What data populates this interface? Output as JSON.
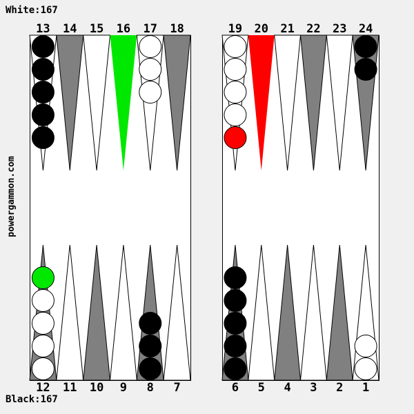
{
  "scores": {
    "white_label": "White:167",
    "black_label": "Black:167",
    "white_pips": 167,
    "black_pips": 167
  },
  "watermark": {
    "text": "powergammon.com"
  },
  "colors": {
    "background": "#f0f0f0",
    "board_fill": "#ffffff",
    "border": "#000000",
    "point_gray": "#808080",
    "point_white": "#ffffff",
    "highlight_green": "#00e800",
    "highlight_red": "#ff0000",
    "checker_black": "#000000",
    "checker_white": "#ffffff",
    "checker_green": "#00e800",
    "checker_red": "#ff0000"
  },
  "board": {
    "points": [
      {
        "number": 13,
        "quadrant": "top-left",
        "triangle": "white",
        "checkers": [
          "black",
          "black",
          "black",
          "black",
          "black"
        ]
      },
      {
        "number": 14,
        "quadrant": "top-left",
        "triangle": "gray",
        "checkers": []
      },
      {
        "number": 15,
        "quadrant": "top-left",
        "triangle": "white",
        "checkers": []
      },
      {
        "number": 16,
        "quadrant": "top-left",
        "triangle": "green",
        "checkers": []
      },
      {
        "number": 17,
        "quadrant": "top-left",
        "triangle": "white",
        "checkers": [
          "white",
          "white",
          "white"
        ]
      },
      {
        "number": 18,
        "quadrant": "top-left",
        "triangle": "gray",
        "checkers": []
      },
      {
        "number": 19,
        "quadrant": "top-right",
        "triangle": "white",
        "checkers": [
          "white",
          "white",
          "white",
          "white",
          "red"
        ]
      },
      {
        "number": 20,
        "quadrant": "top-right",
        "triangle": "red",
        "checkers": []
      },
      {
        "number": 21,
        "quadrant": "top-right",
        "triangle": "white",
        "checkers": []
      },
      {
        "number": 22,
        "quadrant": "top-right",
        "triangle": "gray",
        "checkers": []
      },
      {
        "number": 23,
        "quadrant": "top-right",
        "triangle": "white",
        "checkers": []
      },
      {
        "number": 24,
        "quadrant": "top-right",
        "triangle": "gray",
        "checkers": [
          "black",
          "black"
        ]
      },
      {
        "number": 12,
        "quadrant": "bottom-left",
        "triangle": "gray",
        "checkers": [
          "white",
          "white",
          "white",
          "white",
          "green"
        ]
      },
      {
        "number": 11,
        "quadrant": "bottom-left",
        "triangle": "white",
        "checkers": []
      },
      {
        "number": 10,
        "quadrant": "bottom-left",
        "triangle": "gray",
        "checkers": []
      },
      {
        "number": 9,
        "quadrant": "bottom-left",
        "triangle": "white",
        "checkers": []
      },
      {
        "number": 8,
        "quadrant": "bottom-left",
        "triangle": "gray",
        "checkers": [
          "black",
          "black",
          "black"
        ]
      },
      {
        "number": 7,
        "quadrant": "bottom-left",
        "triangle": "white",
        "checkers": []
      },
      {
        "number": 6,
        "quadrant": "bottom-right",
        "triangle": "gray",
        "checkers": [
          "black",
          "black",
          "black",
          "black",
          "black"
        ]
      },
      {
        "number": 5,
        "quadrant": "bottom-right",
        "triangle": "white",
        "checkers": []
      },
      {
        "number": 4,
        "quadrant": "bottom-right",
        "triangle": "gray",
        "checkers": []
      },
      {
        "number": 3,
        "quadrant": "bottom-right",
        "triangle": "white",
        "checkers": []
      },
      {
        "number": 2,
        "quadrant": "bottom-right",
        "triangle": "gray",
        "checkers": []
      },
      {
        "number": 1,
        "quadrant": "bottom-right",
        "triangle": "white",
        "checkers": [
          "white",
          "white"
        ]
      }
    ]
  }
}
